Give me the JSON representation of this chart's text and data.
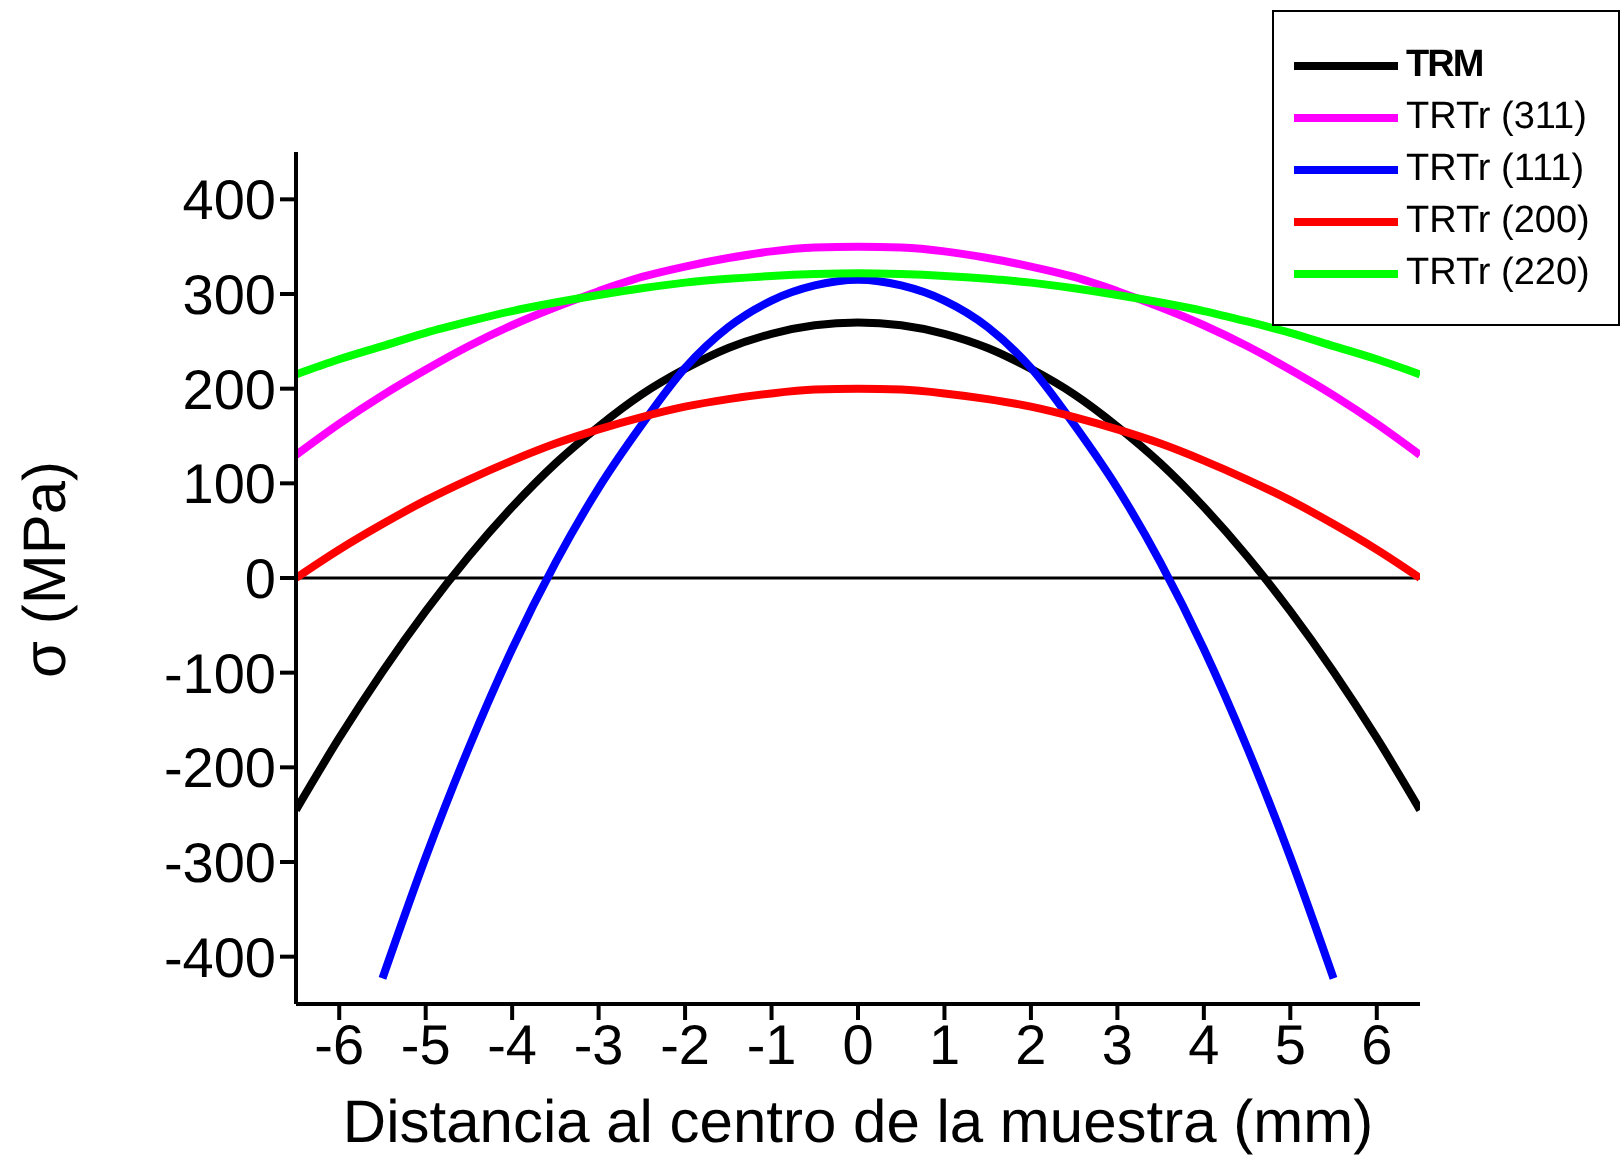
{
  "chart_data": {
    "type": "line",
    "xlabel": "Distancia al centro de la muestra (mm)",
    "ylabel": "σ (MPa)",
    "x": [
      -6.5,
      -6,
      -5.5,
      -5,
      -4.5,
      -4,
      -3.5,
      -3,
      -2.5,
      -2,
      -1.5,
      -1,
      -0.5,
      0,
      0.5,
      1,
      1.5,
      2,
      2.5,
      3,
      3.5,
      4,
      4.5,
      5,
      5.5,
      6,
      6.5
    ],
    "series": [
      {
        "name": "TRM",
        "color": "#000000",
        "values": [
          -245,
          -169,
          -99,
          -35,
          23,
          75,
          121,
          160,
          194,
          221,
          243,
          258,
          267,
          270,
          267,
          258,
          243,
          221,
          194,
          160,
          121,
          75,
          23,
          -35,
          -99,
          -169,
          -245
        ]
      },
      {
        "name": "TRTr (311)",
        "color": "#ff00ff",
        "values": [
          130,
          163,
          193,
          220,
          245,
          267,
          286,
          303,
          318,
          329,
          338,
          345,
          349,
          350,
          349,
          345,
          338,
          329,
          318,
          303,
          286,
          267,
          245,
          220,
          193,
          163,
          130
        ]
      },
      {
        "name": "TRTr (111)",
        "color": "#0000ff",
        "x": [
          -5.5,
          -5,
          -4.5,
          -4,
          -3.5,
          -3,
          -2.5,
          -2,
          -1.5,
          -1,
          -0.5,
          0,
          0.5,
          1,
          1.5,
          2,
          2.5,
          3,
          3.5,
          4,
          4.5,
          5,
          5.5
        ],
        "values": [
          -423,
          -295,
          -179,
          -75,
          16,
          95,
          162,
          222,
          265,
          293,
          309,
          315,
          309,
          293,
          265,
          222,
          162,
          95,
          16,
          -75,
          -179,
          -295,
          -423
        ]
      },
      {
        "name": "TRTr (200)",
        "color": "#ff0000",
        "values": [
          0,
          30,
          57,
          82,
          104,
          124,
          142,
          157,
          170,
          181,
          189,
          195,
          199,
          200,
          199,
          195,
          189,
          181,
          170,
          157,
          142,
          124,
          104,
          82,
          57,
          30,
          0
        ]
      },
      {
        "name": "TRTr (220)",
        "color": "#00ff00",
        "values": [
          215,
          231,
          245,
          259,
          271,
          282,
          291,
          299,
          306,
          312,
          316,
          319,
          321,
          322,
          321,
          319,
          316,
          312,
          306,
          299,
          291,
          282,
          271,
          259,
          245,
          231,
          215
        ]
      }
    ],
    "xlim": [
      -6.5,
      6.5
    ],
    "xticks": [
      -6,
      -5,
      -4,
      -3,
      -2,
      -1,
      0,
      1,
      2,
      3,
      4,
      5,
      6
    ],
    "ylim": [
      -450,
      450
    ],
    "yticks": [
      -400,
      -300,
      -200,
      -100,
      0,
      100,
      200,
      300,
      400
    ],
    "ref_lines": [
      {
        "axis": "y",
        "value": 0,
        "color": "#000000"
      }
    ],
    "grid": false,
    "legend": "top right",
    "marker": "none",
    "line_style": "solid"
  }
}
